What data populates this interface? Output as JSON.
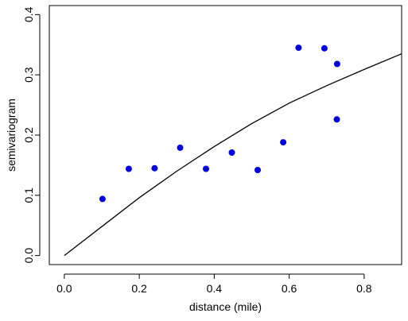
{
  "chart_data": {
    "type": "scatter",
    "title": "",
    "xlabel": "distance (mile)",
    "ylabel": "semivariogram",
    "xlim": [
      -0.04,
      0.9
    ],
    "ylim": [
      -0.015,
      0.415
    ],
    "xticks": [
      0.0,
      0.2,
      0.4,
      0.6,
      0.8
    ],
    "xtick_labels": [
      "0.0",
      "0.2",
      "0.4",
      "0.6",
      "0.8"
    ],
    "yticks": [
      0.0,
      0.1,
      0.2,
      0.3,
      0.4
    ],
    "ytick_labels": [
      "0.0",
      "0.1",
      "0.2",
      "0.3",
      "0.4"
    ],
    "grid": false,
    "legend": "none",
    "point_color": "#0000dd",
    "line_color": "#000000",
    "series": [
      {
        "type": "scatter",
        "x": [
          0.102,
          0.172,
          0.241,
          0.309,
          0.378,
          0.447,
          0.516,
          0.584,
          0.625,
          0.694,
          0.728,
          0.727
        ],
        "y": [
          0.094,
          0.144,
          0.145,
          0.179,
          0.144,
          0.171,
          0.142,
          0.188,
          0.345,
          0.344,
          0.318,
          0.226
        ]
      },
      {
        "type": "line",
        "x": [
          0.0,
          0.1,
          0.2,
          0.3,
          0.4,
          0.5,
          0.6,
          0.7,
          0.8,
          0.9
        ],
        "y": [
          0.0,
          0.048,
          0.096,
          0.14,
          0.181,
          0.219,
          0.253,
          0.282,
          0.309,
          0.335
        ]
      }
    ]
  }
}
